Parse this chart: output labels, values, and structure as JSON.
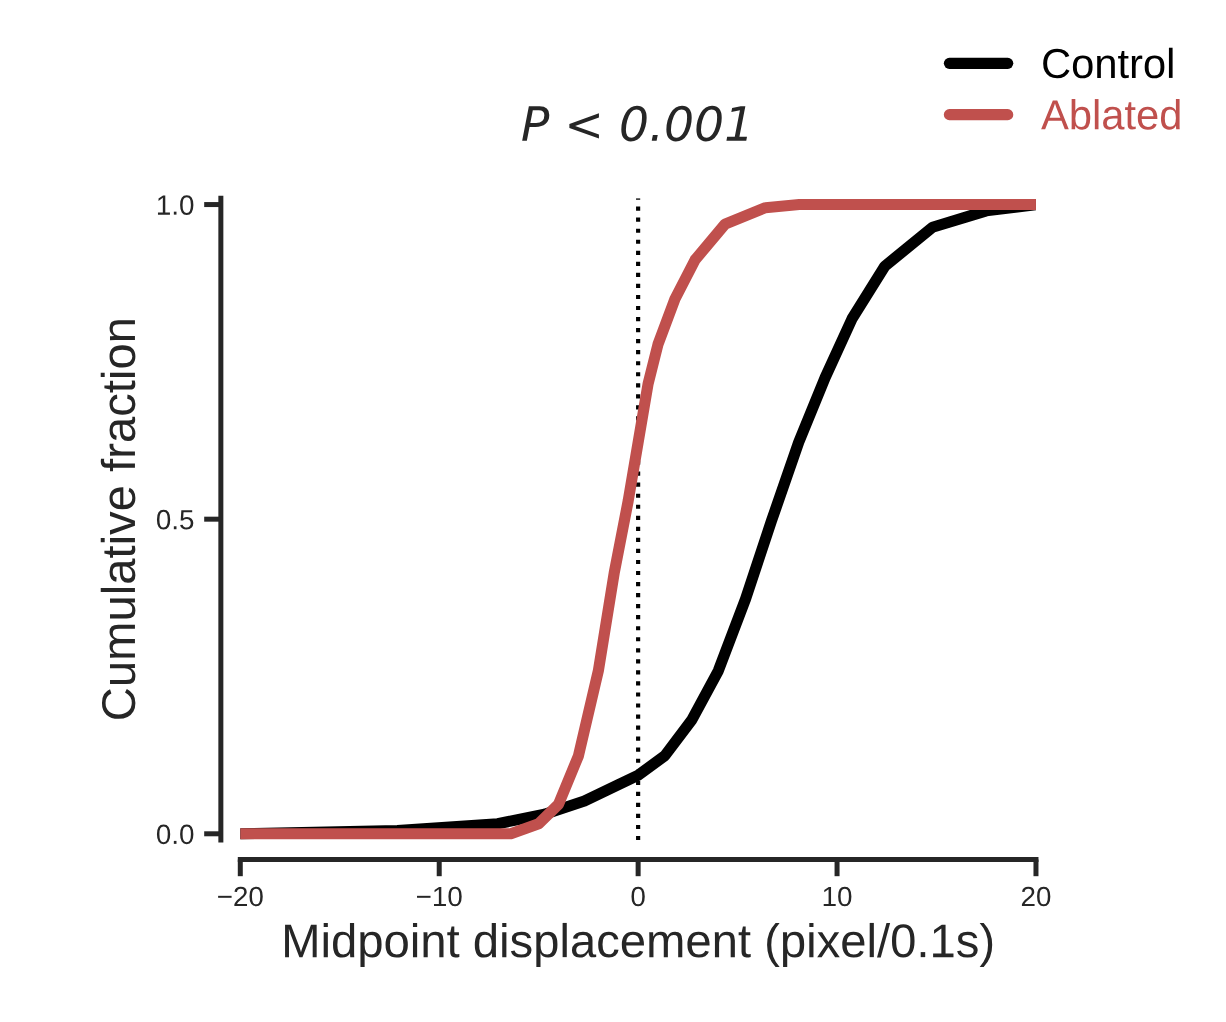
{
  "chart_data": {
    "type": "line",
    "xlabel": "Midpoint displacement (pixel/0.1s)",
    "ylabel": "Cumulative fraction",
    "series": [
      {
        "name": "Control",
        "color": "#000000",
        "x": [
          -20,
          -12.1,
          -7.06,
          -4.7,
          -2.7,
          -1.0,
          0,
          1.34,
          2.7,
          4.03,
          5.4,
          6.7,
          8.07,
          9.4,
          10.76,
          12.4,
          14.8,
          17.5,
          20
        ],
        "values": [
          0,
          0.005,
          0.016,
          0.031,
          0.052,
          0.078,
          0.093,
          0.124,
          0.181,
          0.259,
          0.373,
          0.497,
          0.622,
          0.725,
          0.819,
          0.902,
          0.964,
          0.99,
          1.0
        ]
      },
      {
        "name": "Ablated",
        "color": "#c0504d",
        "x": [
          -20,
          -6.4,
          -5.0,
          -4.0,
          -3.0,
          -2.0,
          -1.2,
          -0.5,
          0,
          0.5,
          1.0,
          1.85,
          2.86,
          4.37,
          6.4,
          8.1,
          20
        ],
        "values": [
          0,
          0,
          0.016,
          0.047,
          0.124,
          0.259,
          0.415,
          0.529,
          0.622,
          0.715,
          0.778,
          0.85,
          0.912,
          0.969,
          0.995,
          1.0,
          1.0
        ]
      }
    ],
    "xlim": [
      -20,
      20
    ],
    "ylim": [
      -0.01,
      1.01
    ],
    "xticks": [
      {
        "value": -20,
        "label": "−20"
      },
      {
        "value": -10,
        "label": "−10"
      },
      0,
      10,
      20
    ],
    "yticks": [
      {
        "value": 0,
        "label": "0.0"
      },
      {
        "value": 0.5,
        "label": "0.5"
      },
      {
        "value": 1,
        "label": "1.0"
      }
    ],
    "ref_lines": [
      {
        "axis": "x",
        "value": 0,
        "label": null,
        "color": "#000000",
        "line_style": "dotted"
      }
    ],
    "annotations": [
      "P < 0.001"
    ],
    "legend": "top right",
    "grid": false,
    "line_style": "solid",
    "marker": "none"
  }
}
